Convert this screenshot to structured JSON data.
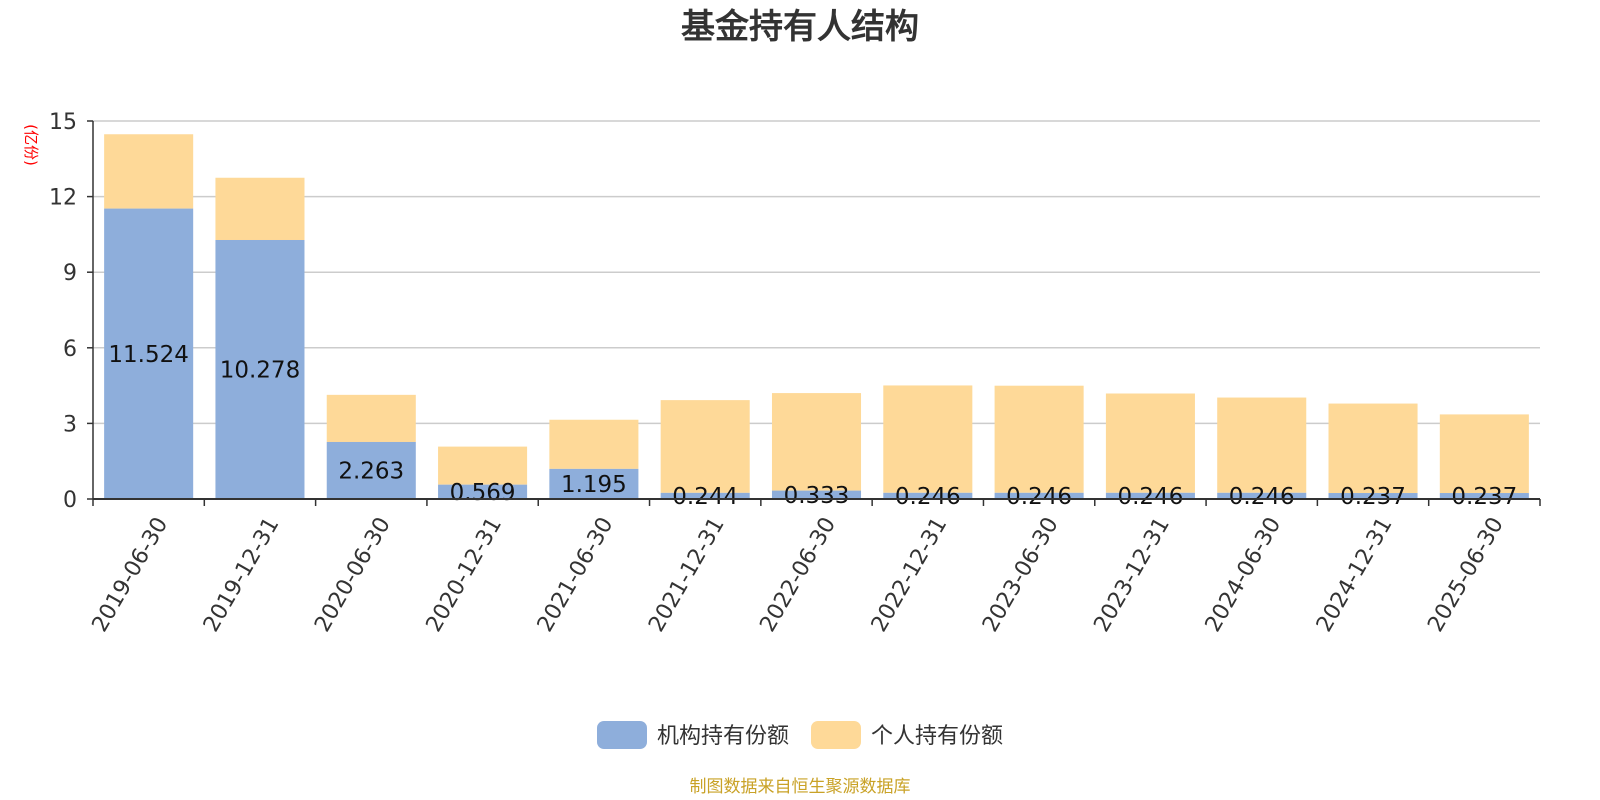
{
  "chart_data": {
    "type": "bar",
    "stacked": true,
    "title": "基金持有人结构",
    "y_unit": "(亿份)",
    "ylim": [
      0,
      15
    ],
    "yticks": [
      "0",
      "3",
      "6",
      "9",
      "12",
      "15"
    ],
    "grid": true,
    "legend_position": "bottom",
    "categories": [
      "2019-06-30",
      "2019-12-31",
      "2020-06-30",
      "2020-12-31",
      "2021-06-30",
      "2021-12-31",
      "2022-06-30",
      "2022-12-31",
      "2023-06-30",
      "2023-12-31",
      "2024-06-30",
      "2024-12-31",
      "2025-06-30"
    ],
    "series": [
      {
        "name": "机构持有份额",
        "color": "#8eaedb",
        "values": [
          11.524,
          10.278,
          2.263,
          0.569,
          1.195,
          0.244,
          0.333,
          0.246,
          0.246,
          0.246,
          0.246,
          0.237,
          0.237
        ],
        "labels": [
          "11.524",
          "10.278",
          "2.263",
          "0.569",
          "1.195",
          "0.244",
          "0.333",
          "0.246",
          "0.246",
          "0.246",
          "0.246",
          "0.237",
          "0.237"
        ]
      },
      {
        "name": "个人持有份额",
        "color": "#fed998",
        "values": [
          2.95,
          2.47,
          1.87,
          1.51,
          1.95,
          3.68,
          3.87,
          4.26,
          4.25,
          3.94,
          3.78,
          3.55,
          3.12
        ]
      }
    ]
  },
  "footer": {
    "source": "制图数据来自恒生聚源数据库"
  }
}
